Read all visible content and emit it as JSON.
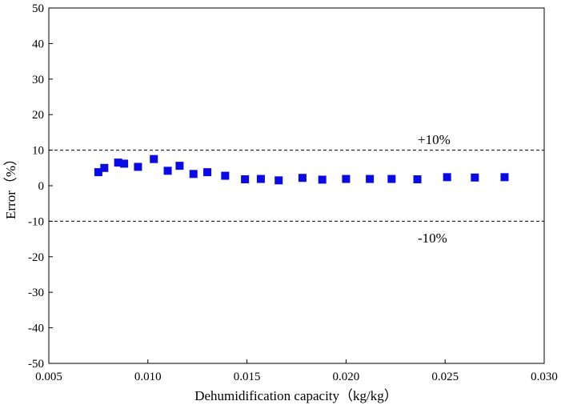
{
  "chart_data": {
    "type": "scatter",
    "title": "",
    "xlabel": "Dehumidification capacity（kg/kg）",
    "ylabel": "Error（%）",
    "xlim": [
      0.005,
      0.03
    ],
    "ylim": [
      -50,
      50
    ],
    "x_ticks": [
      "0.005",
      "0.010",
      "0.015",
      "0.020",
      "0.025",
      "0.030"
    ],
    "y_ticks": [
      "50",
      "40",
      "30",
      "20",
      "10",
      "0",
      "-10",
      "-20",
      "-30",
      "-40",
      "-50"
    ],
    "grid": false,
    "legend": "none",
    "marker_color": "#0a0ae6",
    "marker_shape": "square",
    "reference_lines": [
      {
        "y": 10,
        "style": "dashed",
        "label": "+10%"
      },
      {
        "y": -10,
        "style": "dashed",
        "label": "-10%"
      }
    ],
    "series": [
      {
        "x": [
          0.0075,
          0.0078,
          0.0085,
          0.0088,
          0.0095,
          0.0103,
          0.011,
          0.0116,
          0.0123,
          0.013,
          0.0139,
          0.0149,
          0.0157,
          0.0166,
          0.0178,
          0.0188,
          0.02,
          0.0212,
          0.0223,
          0.0236,
          0.0251,
          0.0265,
          0.028
        ],
        "y": [
          3.8,
          5.0,
          6.5,
          6.2,
          5.3,
          7.5,
          4.2,
          5.6,
          3.3,
          3.8,
          2.8,
          1.8,
          1.9,
          1.5,
          2.2,
          1.7,
          1.9,
          1.9,
          1.9,
          1.8,
          2.4,
          2.3,
          2.4
        ]
      }
    ]
  }
}
